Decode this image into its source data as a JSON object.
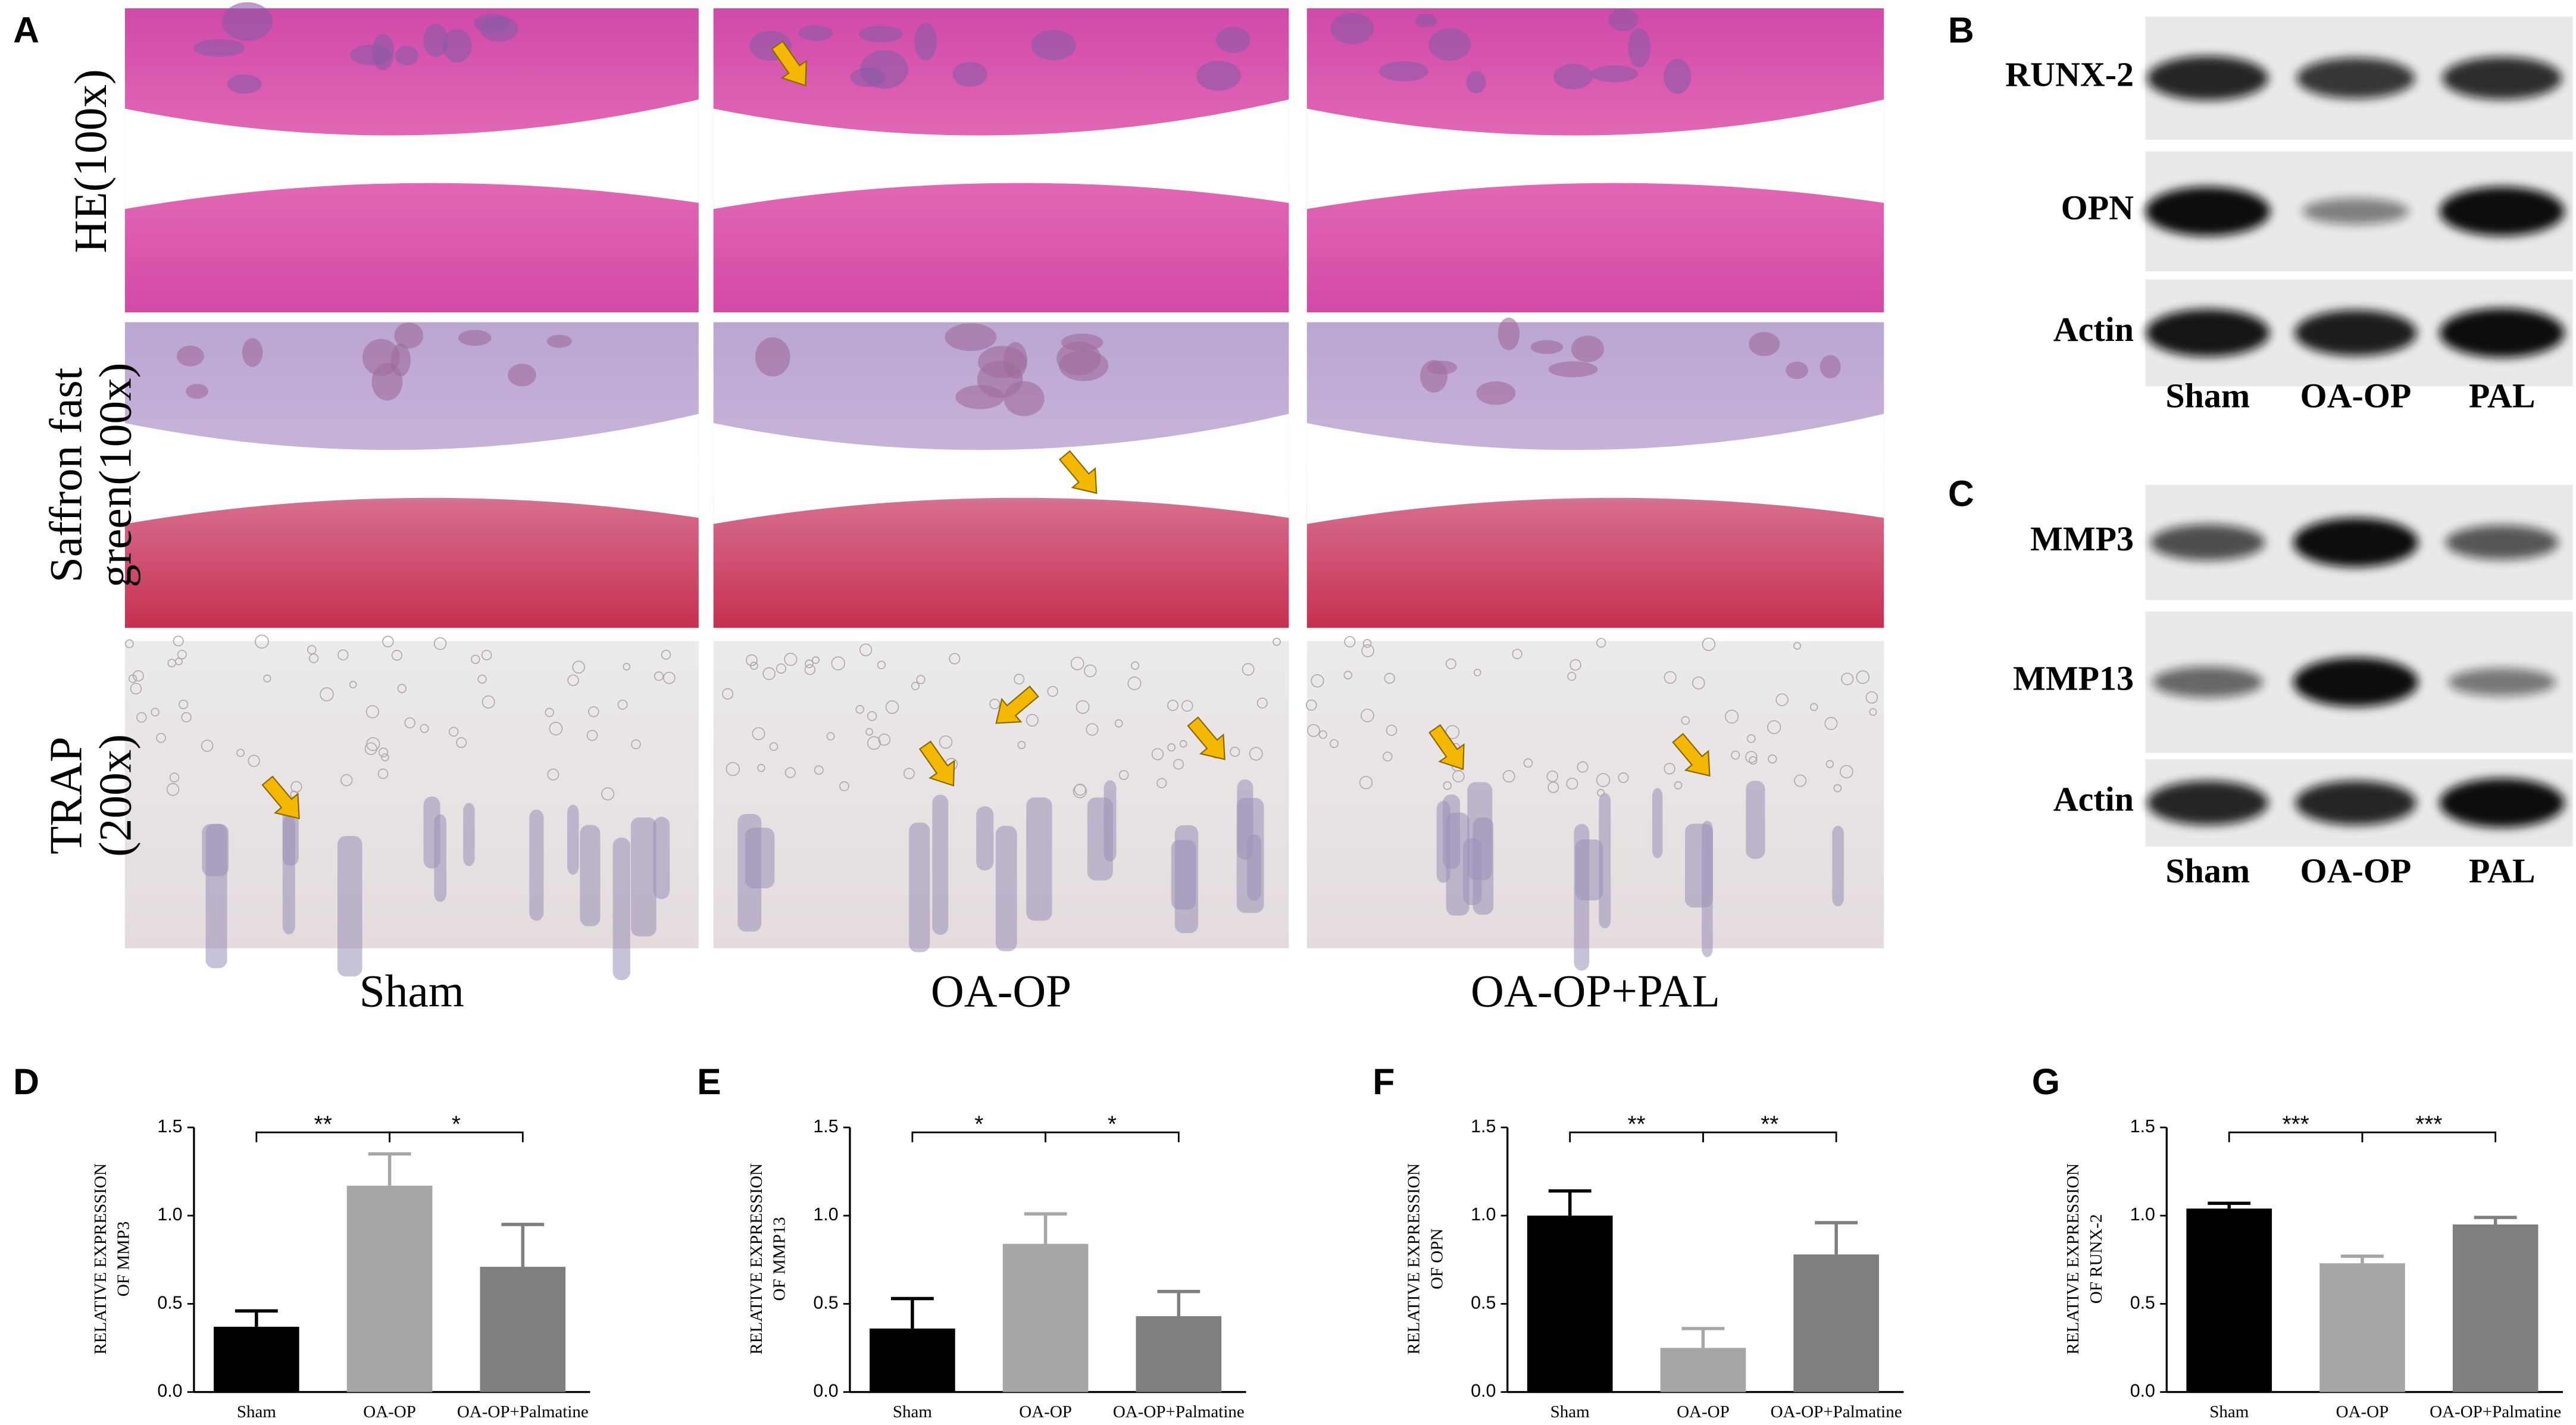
{
  "panel_labels": [
    "A",
    "B",
    "C",
    "D",
    "E",
    "F",
    "G"
  ],
  "histology": {
    "rows": [
      [
        "HE(100x)"
      ],
      [
        "Saffron fast",
        "green(100x)"
      ],
      [
        "TRAP",
        "(200x)"
      ]
    ],
    "columns": [
      "Sham",
      "OA-OP",
      "OA-OP+PAL"
    ]
  },
  "blots": [
    {
      "rows": [
        "RUNX-2",
        "OPN",
        "Actin"
      ],
      "lanes": [
        "Sham",
        "OA-OP",
        "PAL"
      ]
    },
    {
      "rows": [
        "MMP3",
        "MMP13",
        "Actin"
      ],
      "lanes": [
        "Sham",
        "OA-OP",
        "PAL"
      ]
    }
  ],
  "chart_data": [
    {
      "type": "bar",
      "y_label": [
        "RELATIVE EXPRESSION",
        "OF MMP3"
      ],
      "categories": [
        "Sham",
        "OA-OP",
        "OA-OP+Palmatine"
      ],
      "values": [
        0.37,
        1.17,
        0.71
      ],
      "errors": [
        0.09,
        0.18,
        0.24
      ],
      "colors": [
        "#000000",
        "#a6a6a6",
        "#7f7f7f"
      ],
      "ylim": [
        0,
        1.5
      ],
      "yticks": [
        {
          "value": 0,
          "label": "0.0"
        },
        0.5,
        {
          "value": 1,
          "label": "1.0"
        },
        1.5
      ],
      "significance": [
        {
          "pair": [
            "Sham",
            "OA-OP"
          ],
          "label": "**"
        },
        {
          "pair": [
            "OA-OP",
            "OA-OP+Palmatine"
          ],
          "label": "*"
        }
      ]
    },
    {
      "type": "bar",
      "y_label": [
        "RELATIVE EXPRESSION",
        "OF MMP13"
      ],
      "categories": [
        "Sham",
        "OA-OP",
        "OA-OP+Palmatine"
      ],
      "values": [
        0.36,
        0.84,
        0.43
      ],
      "errors": [
        0.17,
        0.17,
        0.14
      ],
      "colors": [
        "#000000",
        "#a6a6a6",
        "#7f7f7f"
      ],
      "ylim": [
        0,
        1.5
      ],
      "yticks": [
        {
          "value": 0,
          "label": "0.0"
        },
        0.5,
        {
          "value": 1,
          "label": "1.0"
        },
        1.5
      ],
      "significance": [
        {
          "pair": [
            "Sham",
            "OA-OP"
          ],
          "label": "*"
        },
        {
          "pair": [
            "OA-OP",
            "OA-OP+Palmatine"
          ],
          "label": "*"
        }
      ]
    },
    {
      "type": "bar",
      "y_label": [
        "RELATIVE EXPRESSION",
        "OF OPN"
      ],
      "categories": [
        "Sham",
        "OA-OP",
        "OA-OP+Palmatine"
      ],
      "values": [
        1.0,
        0.25,
        0.78
      ],
      "errors": [
        0.14,
        0.11,
        0.18
      ],
      "colors": [
        "#000000",
        "#a6a6a6",
        "#7f7f7f"
      ],
      "ylim": [
        0,
        1.5
      ],
      "yticks": [
        {
          "value": 0,
          "label": "0.0"
        },
        0.5,
        {
          "value": 1,
          "label": "1.0"
        },
        1.5
      ],
      "significance": [
        {
          "pair": [
            "Sham",
            "OA-OP"
          ],
          "label": "**"
        },
        {
          "pair": [
            "OA-OP",
            "OA-OP+Palmatine"
          ],
          "label": "**"
        }
      ]
    },
    {
      "type": "bar",
      "y_label": [
        "RELATIVE EXPRESSION",
        "OF RUNX-2"
      ],
      "categories": [
        "Sham",
        "OA-OP",
        "OA-OP+Palmatine"
      ],
      "values": [
        1.04,
        0.73,
        0.95
      ],
      "errors": [
        0.03,
        0.04,
        0.04
      ],
      "colors": [
        "#000000",
        "#a6a6a6",
        "#7f7f7f"
      ],
      "ylim": [
        0,
        1.5
      ],
      "yticks": [
        {
          "value": 0,
          "label": "0.0"
        },
        0.5,
        {
          "value": 1,
          "label": "1.0"
        },
        1.5
      ],
      "significance": [
        {
          "pair": [
            "Sham",
            "OA-OP"
          ],
          "label": "***"
        },
        {
          "pair": [
            "OA-OP",
            "OA-OP+Palmatine"
          ],
          "label": "***"
        }
      ]
    }
  ]
}
